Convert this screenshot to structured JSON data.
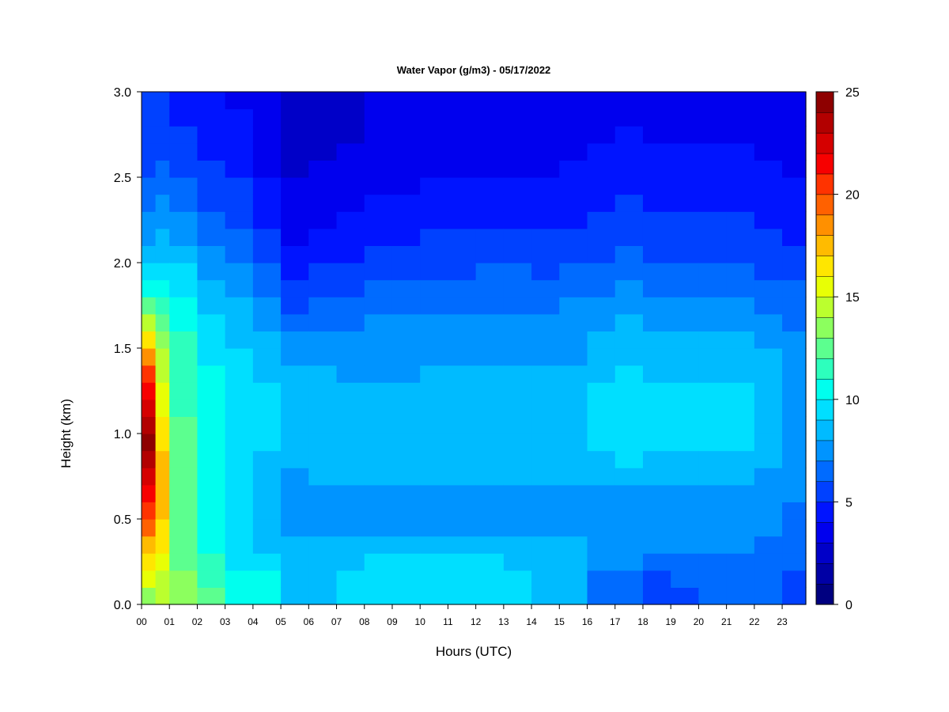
{
  "chart_data": {
    "type": "heatmap",
    "title": "Water Vapor (g/m3) - 05/17/2022",
    "xlabel": "Hours (UTC)",
    "ylabel": "Height (km)",
    "xlim": [
      0,
      23.85
    ],
    "ylim": [
      0.0,
      3.0
    ],
    "x_ticks": [
      0,
      1,
      2,
      3,
      4,
      5,
      6,
      7,
      8,
      9,
      10,
      11,
      12,
      13,
      14,
      15,
      16,
      17,
      18,
      19,
      20,
      21,
      22,
      23
    ],
    "x_tick_labels": [
      "00",
      "01",
      "02",
      "03",
      "04",
      "05",
      "06",
      "07",
      "08",
      "09",
      "10",
      "11",
      "12",
      "13",
      "14",
      "15",
      "16",
      "17",
      "18",
      "19",
      "20",
      "21",
      "22",
      "23"
    ],
    "y_ticks": [
      0.0,
      0.5,
      1.0,
      1.5,
      2.0,
      2.5,
      3.0
    ],
    "y_tick_labels": [
      "0.0",
      "0.5",
      "1.0",
      "1.5",
      "2.0",
      "2.5",
      "3.0"
    ],
    "colorbar": {
      "min": 0,
      "max": 25,
      "levels": 25,
      "tick_values": [
        0,
        5,
        10,
        15,
        20,
        25
      ],
      "tick_labels": [
        "0",
        "5",
        "10",
        "15",
        "20",
        "25"
      ],
      "colors": [
        "#000080",
        "#0000a5",
        "#0000c8",
        "#0000ee",
        "#0014ff",
        "#0041ff",
        "#006bff",
        "#0094ff",
        "#00bbff",
        "#00dfff",
        "#00ffee",
        "#2dffbd",
        "#5cff8f",
        "#8cff5e",
        "#bbff2e",
        "#e8ff05",
        "#ffe600",
        "#ffbb00",
        "#ff9000",
        "#ff6100",
        "#ff3300",
        "#f70000",
        "#d50000",
        "#b20000",
        "#8e0000"
      ]
    },
    "profile_heights_km": [
      0.0,
      0.1,
      0.2,
      0.3,
      0.4,
      0.5,
      0.6,
      0.7,
      0.8,
      0.9,
      1.0,
      1.1,
      1.2,
      1.3,
      1.4,
      1.5,
      1.6,
      1.7,
      1.8,
      1.9,
      2.0,
      2.1,
      2.2,
      2.3,
      2.4,
      2.5,
      2.6,
      2.7,
      2.8,
      2.9,
      3.0
    ],
    "profiles": [
      {
        "hour": 0.0,
        "values": [
          13,
          14,
          16,
          17,
          18,
          20,
          21,
          22,
          23,
          24,
          24,
          23,
          22,
          21,
          19,
          17,
          15,
          13,
          11,
          10,
          9,
          8,
          7,
          7,
          6,
          6,
          5,
          5,
          5,
          5,
          5
        ]
      },
      {
        "hour": 0.5,
        "values": [
          14,
          14,
          15,
          16,
          16,
          17,
          17,
          17,
          17,
          17,
          16,
          16,
          15,
          15,
          14,
          14,
          13,
          12,
          11,
          10,
          9,
          8,
          8,
          7,
          7,
          6,
          6,
          5,
          5,
          5,
          5
        ]
      },
      {
        "hour": 1.0,
        "values": [
          13,
          13,
          13,
          12,
          12,
          12,
          12,
          12,
          12,
          12,
          12,
          12,
          11,
          11,
          11,
          11,
          11,
          10,
          10,
          9,
          9,
          8,
          7,
          7,
          6,
          6,
          5,
          5,
          5,
          4,
          4
        ]
      },
      {
        "hour": 2.0,
        "values": [
          12,
          12,
          11,
          11,
          10,
          10,
          10,
          10,
          10,
          10,
          10,
          10,
          10,
          10,
          10,
          9,
          9,
          9,
          8,
          8,
          7,
          7,
          6,
          6,
          5,
          5,
          5,
          4,
          4,
          4,
          4
        ]
      },
      {
        "hour": 3.0,
        "values": [
          10,
          10,
          10,
          9,
          9,
          9,
          9,
          9,
          9,
          9,
          9,
          9,
          9,
          9,
          9,
          9,
          8,
          8,
          8,
          7,
          7,
          6,
          6,
          5,
          5,
          5,
          4,
          4,
          4,
          4,
          3
        ]
      },
      {
        "hour": 4.0,
        "values": [
          10,
          10,
          10,
          9,
          8,
          8,
          8,
          8,
          8,
          9,
          9,
          9,
          9,
          9,
          8,
          8,
          8,
          7,
          7,
          6,
          6,
          5,
          5,
          4,
          4,
          4,
          3,
          3,
          3,
          3,
          3
        ]
      },
      {
        "hour": 5.0,
        "values": [
          8,
          8,
          8,
          8,
          8,
          7,
          7,
          7,
          8,
          8,
          8,
          8,
          8,
          8,
          8,
          7,
          7,
          6,
          5,
          5,
          4,
          4,
          3,
          3,
          3,
          3,
          2,
          2,
          2,
          2,
          2
        ]
      },
      {
        "hour": 6.0,
        "values": [
          8,
          8,
          8,
          8,
          8,
          7,
          7,
          8,
          8,
          8,
          8,
          8,
          8,
          8,
          8,
          7,
          7,
          6,
          6,
          5,
          5,
          4,
          4,
          3,
          3,
          3,
          3,
          2,
          2,
          2,
          2
        ]
      },
      {
        "hour": 7.0,
        "values": [
          9,
          9,
          9,
          8,
          8,
          7,
          7,
          8,
          8,
          8,
          8,
          8,
          8,
          8,
          7,
          7,
          7,
          6,
          6,
          5,
          5,
          4,
          4,
          4,
          3,
          3,
          3,
          3,
          2,
          2,
          2
        ]
      },
      {
        "hour": 8.0,
        "values": [
          9,
          9,
          9,
          9,
          8,
          7,
          7,
          8,
          8,
          8,
          8,
          8,
          8,
          8,
          7,
          7,
          7,
          7,
          6,
          6,
          5,
          5,
          4,
          4,
          4,
          3,
          3,
          3,
          3,
          3,
          3
        ]
      },
      {
        "hour": 9.0,
        "values": [
          9,
          9,
          9,
          9,
          8,
          7,
          7,
          8,
          8,
          8,
          8,
          8,
          8,
          8,
          7,
          7,
          7,
          7,
          6,
          6,
          5,
          5,
          4,
          4,
          4,
          3,
          3,
          3,
          3,
          3,
          3
        ]
      },
      {
        "hour": 10.0,
        "values": [
          9,
          9,
          9,
          9,
          8,
          7,
          7,
          8,
          8,
          8,
          8,
          8,
          8,
          8,
          8,
          7,
          7,
          7,
          6,
          6,
          5,
          5,
          5,
          4,
          4,
          4,
          3,
          3,
          3,
          3,
          3
        ]
      },
      {
        "hour": 11.0,
        "values": [
          9,
          9,
          9,
          9,
          8,
          7,
          7,
          8,
          8,
          8,
          8,
          8,
          8,
          8,
          8,
          7,
          7,
          7,
          6,
          6,
          5,
          5,
          5,
          4,
          4,
          4,
          3,
          3,
          3,
          3,
          3
        ]
      },
      {
        "hour": 12.0,
        "values": [
          9,
          9,
          9,
          9,
          8,
          7,
          7,
          8,
          8,
          8,
          8,
          8,
          8,
          8,
          8,
          7,
          7,
          7,
          6,
          6,
          6,
          5,
          5,
          4,
          4,
          4,
          3,
          3,
          3,
          3,
          3
        ]
      },
      {
        "hour": 13.0,
        "values": [
          9,
          9,
          9,
          8,
          8,
          7,
          7,
          8,
          8,
          8,
          8,
          8,
          8,
          8,
          8,
          7,
          7,
          7,
          6,
          6,
          6,
          5,
          5,
          4,
          4,
          4,
          3,
          3,
          3,
          3,
          3
        ]
      },
      {
        "hour": 14.0,
        "values": [
          8,
          8,
          9,
          8,
          8,
          7,
          7,
          8,
          8,
          8,
          8,
          8,
          8,
          8,
          8,
          7,
          7,
          7,
          6,
          6,
          5,
          5,
          5,
          4,
          4,
          4,
          3,
          3,
          3,
          3,
          3
        ]
      },
      {
        "hour": 15.0,
        "values": [
          8,
          8,
          8,
          8,
          8,
          7,
          7,
          8,
          8,
          8,
          8,
          8,
          8,
          8,
          8,
          7,
          7,
          7,
          7,
          6,
          6,
          5,
          5,
          4,
          4,
          4,
          4,
          3,
          3,
          3,
          3
        ]
      },
      {
        "hour": 16.0,
        "values": [
          6,
          6,
          7,
          7,
          7,
          7,
          7,
          8,
          8,
          9,
          9,
          9,
          9,
          9,
          8,
          8,
          8,
          7,
          7,
          6,
          6,
          5,
          5,
          5,
          4,
          4,
          4,
          4,
          3,
          3,
          3
        ]
      },
      {
        "hour": 17.0,
        "values": [
          6,
          6,
          7,
          7,
          7,
          7,
          7,
          8,
          9,
          9,
          9,
          9,
          9,
          9,
          9,
          8,
          8,
          8,
          7,
          7,
          6,
          6,
          5,
          5,
          5,
          4,
          4,
          4,
          4,
          3,
          3
        ]
      },
      {
        "hour": 18.0,
        "values": [
          5,
          5,
          6,
          7,
          7,
          7,
          7,
          8,
          8,
          9,
          9,
          9,
          9,
          9,
          8,
          8,
          8,
          7,
          7,
          6,
          6,
          5,
          5,
          5,
          4,
          4,
          4,
          4,
          3,
          3,
          3
        ]
      },
      {
        "hour": 19.0,
        "values": [
          5,
          6,
          6,
          7,
          7,
          7,
          7,
          8,
          8,
          9,
          9,
          9,
          9,
          9,
          8,
          8,
          8,
          7,
          7,
          6,
          6,
          5,
          5,
          5,
          4,
          4,
          4,
          4,
          3,
          3,
          3
        ]
      },
      {
        "hour": 20.0,
        "values": [
          6,
          6,
          6,
          7,
          7,
          7,
          7,
          8,
          8,
          9,
          9,
          9,
          9,
          9,
          8,
          8,
          8,
          7,
          7,
          6,
          6,
          5,
          5,
          5,
          4,
          4,
          4,
          4,
          3,
          3,
          3
        ]
      },
      {
        "hour": 21.0,
        "values": [
          6,
          6,
          6,
          7,
          7,
          7,
          7,
          8,
          8,
          9,
          9,
          9,
          9,
          9,
          8,
          8,
          8,
          7,
          7,
          6,
          6,
          5,
          5,
          5,
          4,
          4,
          4,
          4,
          3,
          3,
          3
        ]
      },
      {
        "hour": 22.0,
        "values": [
          6,
          6,
          6,
          6,
          7,
          7,
          7,
          7,
          8,
          8,
          8,
          8,
          8,
          8,
          8,
          8,
          7,
          7,
          6,
          6,
          5,
          5,
          5,
          4,
          4,
          4,
          4,
          3,
          3,
          3,
          3
        ]
      },
      {
        "hour": 23.0,
        "values": [
          5,
          5,
          6,
          6,
          6,
          6,
          7,
          7,
          7,
          7,
          7,
          7,
          7,
          7,
          7,
          7,
          7,
          6,
          6,
          6,
          5,
          5,
          4,
          4,
          4,
          4,
          3,
          3,
          3,
          3,
          3
        ]
      },
      {
        "hour": 23.85,
        "values": [
          5,
          5,
          6,
          6,
          6,
          6,
          7,
          7,
          7,
          7,
          7,
          7,
          7,
          7,
          7,
          7,
          7,
          6,
          6,
          6,
          5,
          5,
          4,
          4,
          4,
          4,
          3,
          3,
          3,
          3,
          3
        ]
      }
    ]
  }
}
